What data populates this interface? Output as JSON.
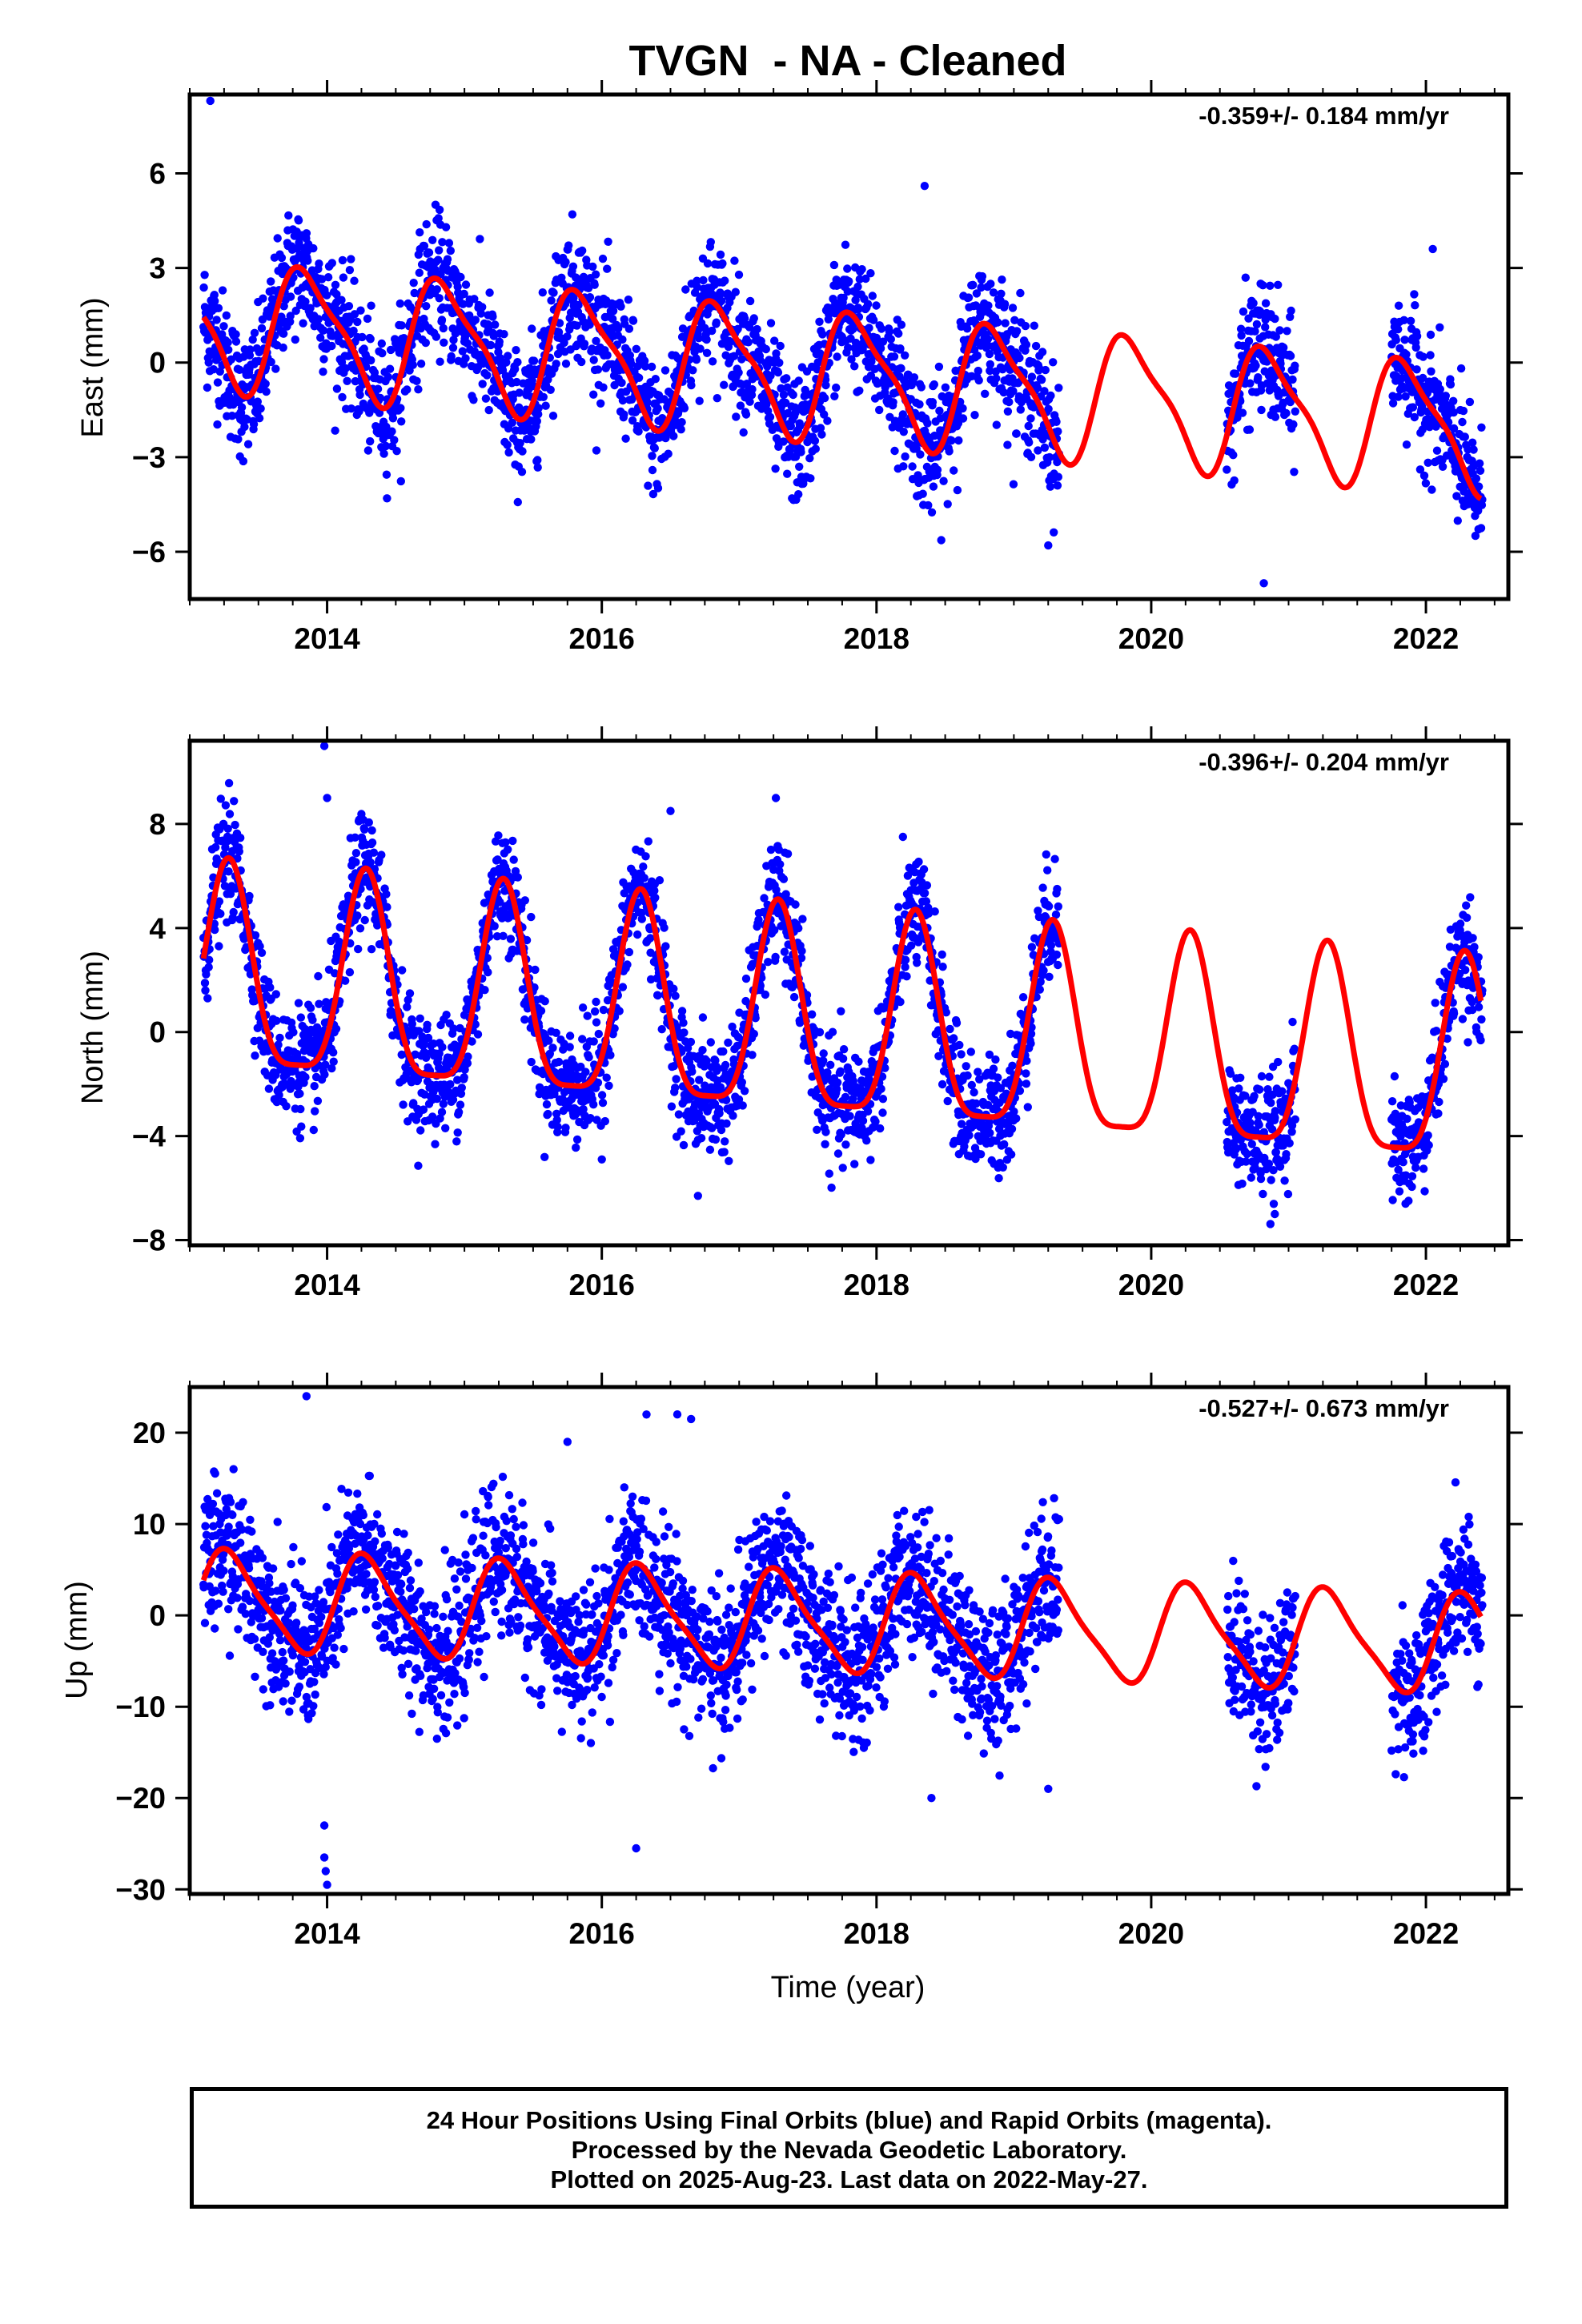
{
  "title": "TVGN  - NA - Cleaned",
  "xlabel": "Time (year)",
  "colors": {
    "points": "#0000ff",
    "fit": "#ff0000",
    "axes": "#000000"
  },
  "footer": {
    "line1": "24 Hour Positions Using Final Orbits (blue) and Rapid Orbits (magenta).",
    "line2": "Processed by the Nevada Geodetic Laboratory.",
    "line3": "Plotted on 2025-Aug-23. Last data on 2022-May-27."
  },
  "chart_data": [
    {
      "type": "scatter",
      "ylabel": "East (mm)",
      "rate_label": "-0.359+/- 0.184 mm/yr",
      "xlim": [
        2013.0,
        2022.6
      ],
      "ylim": [
        -7.5,
        8.5
      ],
      "xticks": [
        2014,
        2016,
        2018,
        2020,
        2022
      ],
      "yticks": [
        -6,
        -3,
        0,
        3,
        6
      ],
      "tick_labels": [
        "−6",
        "−3",
        "0",
        "3",
        "6"
      ],
      "data_ranges": [
        [
          2013.1,
          2019.33
        ],
        [
          2020.55,
          2021.05
        ],
        [
          2021.75,
          2022.41
        ]
      ],
      "fit": {
        "start": 2013.1,
        "end": 2022.4,
        "offset": 1.25,
        "trend": -0.359,
        "annual_cos": 1.2,
        "annual_sin": -1.5,
        "semi_cos": -0.45,
        "semi_sin": 0.25,
        "noise": 1.0
      },
      "outliers": [
        [
          2013.15,
          8.3
        ],
        [
          2018.35,
          5.6
        ],
        [
          2019.25,
          -5.8
        ],
        [
          2020.82,
          -7.0
        ],
        [
          2022.05,
          3.6
        ]
      ]
    },
    {
      "type": "scatter",
      "ylabel": "North (mm)",
      "rate_label": "-0.396+/- 0.204 mm/yr",
      "xlim": [
        2013.0,
        2022.6
      ],
      "ylim": [
        -8.2,
        11.2
      ],
      "xticks": [
        2014,
        2016,
        2018,
        2020,
        2022
      ],
      "yticks": [
        -8,
        -4,
        0,
        4,
        8
      ],
      "tick_labels": [
        "−8",
        "−4",
        "0",
        "4",
        "8"
      ],
      "data_ranges": [
        [
          2013.1,
          2019.33
        ],
        [
          2020.55,
          2021.05
        ],
        [
          2021.75,
          2022.41
        ]
      ],
      "fit": {
        "start": 2013.1,
        "end": 2022.4,
        "offset": 1.9,
        "trend": -0.396,
        "annual_cos": -0.8,
        "annual_sin": 3.8,
        "semi_cos": -0.9,
        "semi_sin": -0.4,
        "noise": 1.1
      },
      "outliers": [
        [
          2013.98,
          11.0
        ],
        [
          2014.0,
          9.0
        ],
        [
          2016.5,
          8.5
        ],
        [
          2016.0,
          -4.9
        ],
        [
          2016.7,
          -6.3
        ],
        [
          2020.9,
          -7.0
        ]
      ]
    },
    {
      "type": "scatter",
      "ylabel": "Up (mm)",
      "rate_label": "-0.527+/- 0.673 mm/yr",
      "xlim": [
        2013.0,
        2022.6
      ],
      "ylim": [
        -30.5,
        25.0
      ],
      "xticks": [
        2014,
        2016,
        2018,
        2020,
        2022
      ],
      "yticks": [
        -30,
        -20,
        -10,
        0,
        10,
        20
      ],
      "tick_labels": [
        "−30",
        "−20",
        "−10",
        "0",
        "10",
        "20"
      ],
      "data_ranges": [
        [
          2013.1,
          2019.33
        ],
        [
          2020.55,
          2021.05
        ],
        [
          2021.75,
          2022.41
        ]
      ],
      "fit": {
        "start": 2013.1,
        "end": 2022.4,
        "offset": 1.6,
        "trend": -0.527,
        "annual_cos": -1.5,
        "annual_sin": 5.0,
        "semi_cos": -0.8,
        "semi_sin": 0.8,
        "noise": 4.0
      },
      "outliers": [
        [
          2013.85,
          24.0
        ],
        [
          2013.98,
          -23.0
        ],
        [
          2013.98,
          -26.5
        ],
        [
          2013.99,
          -28.0
        ],
        [
          2014.0,
          -29.5
        ],
        [
          2016.25,
          -25.5
        ],
        [
          2016.55,
          22.0
        ],
        [
          2016.65,
          21.5
        ],
        [
          2015.75,
          19.0
        ],
        [
          2018.4,
          -20.0
        ],
        [
          2019.25,
          -19.0
        ]
      ]
    }
  ]
}
